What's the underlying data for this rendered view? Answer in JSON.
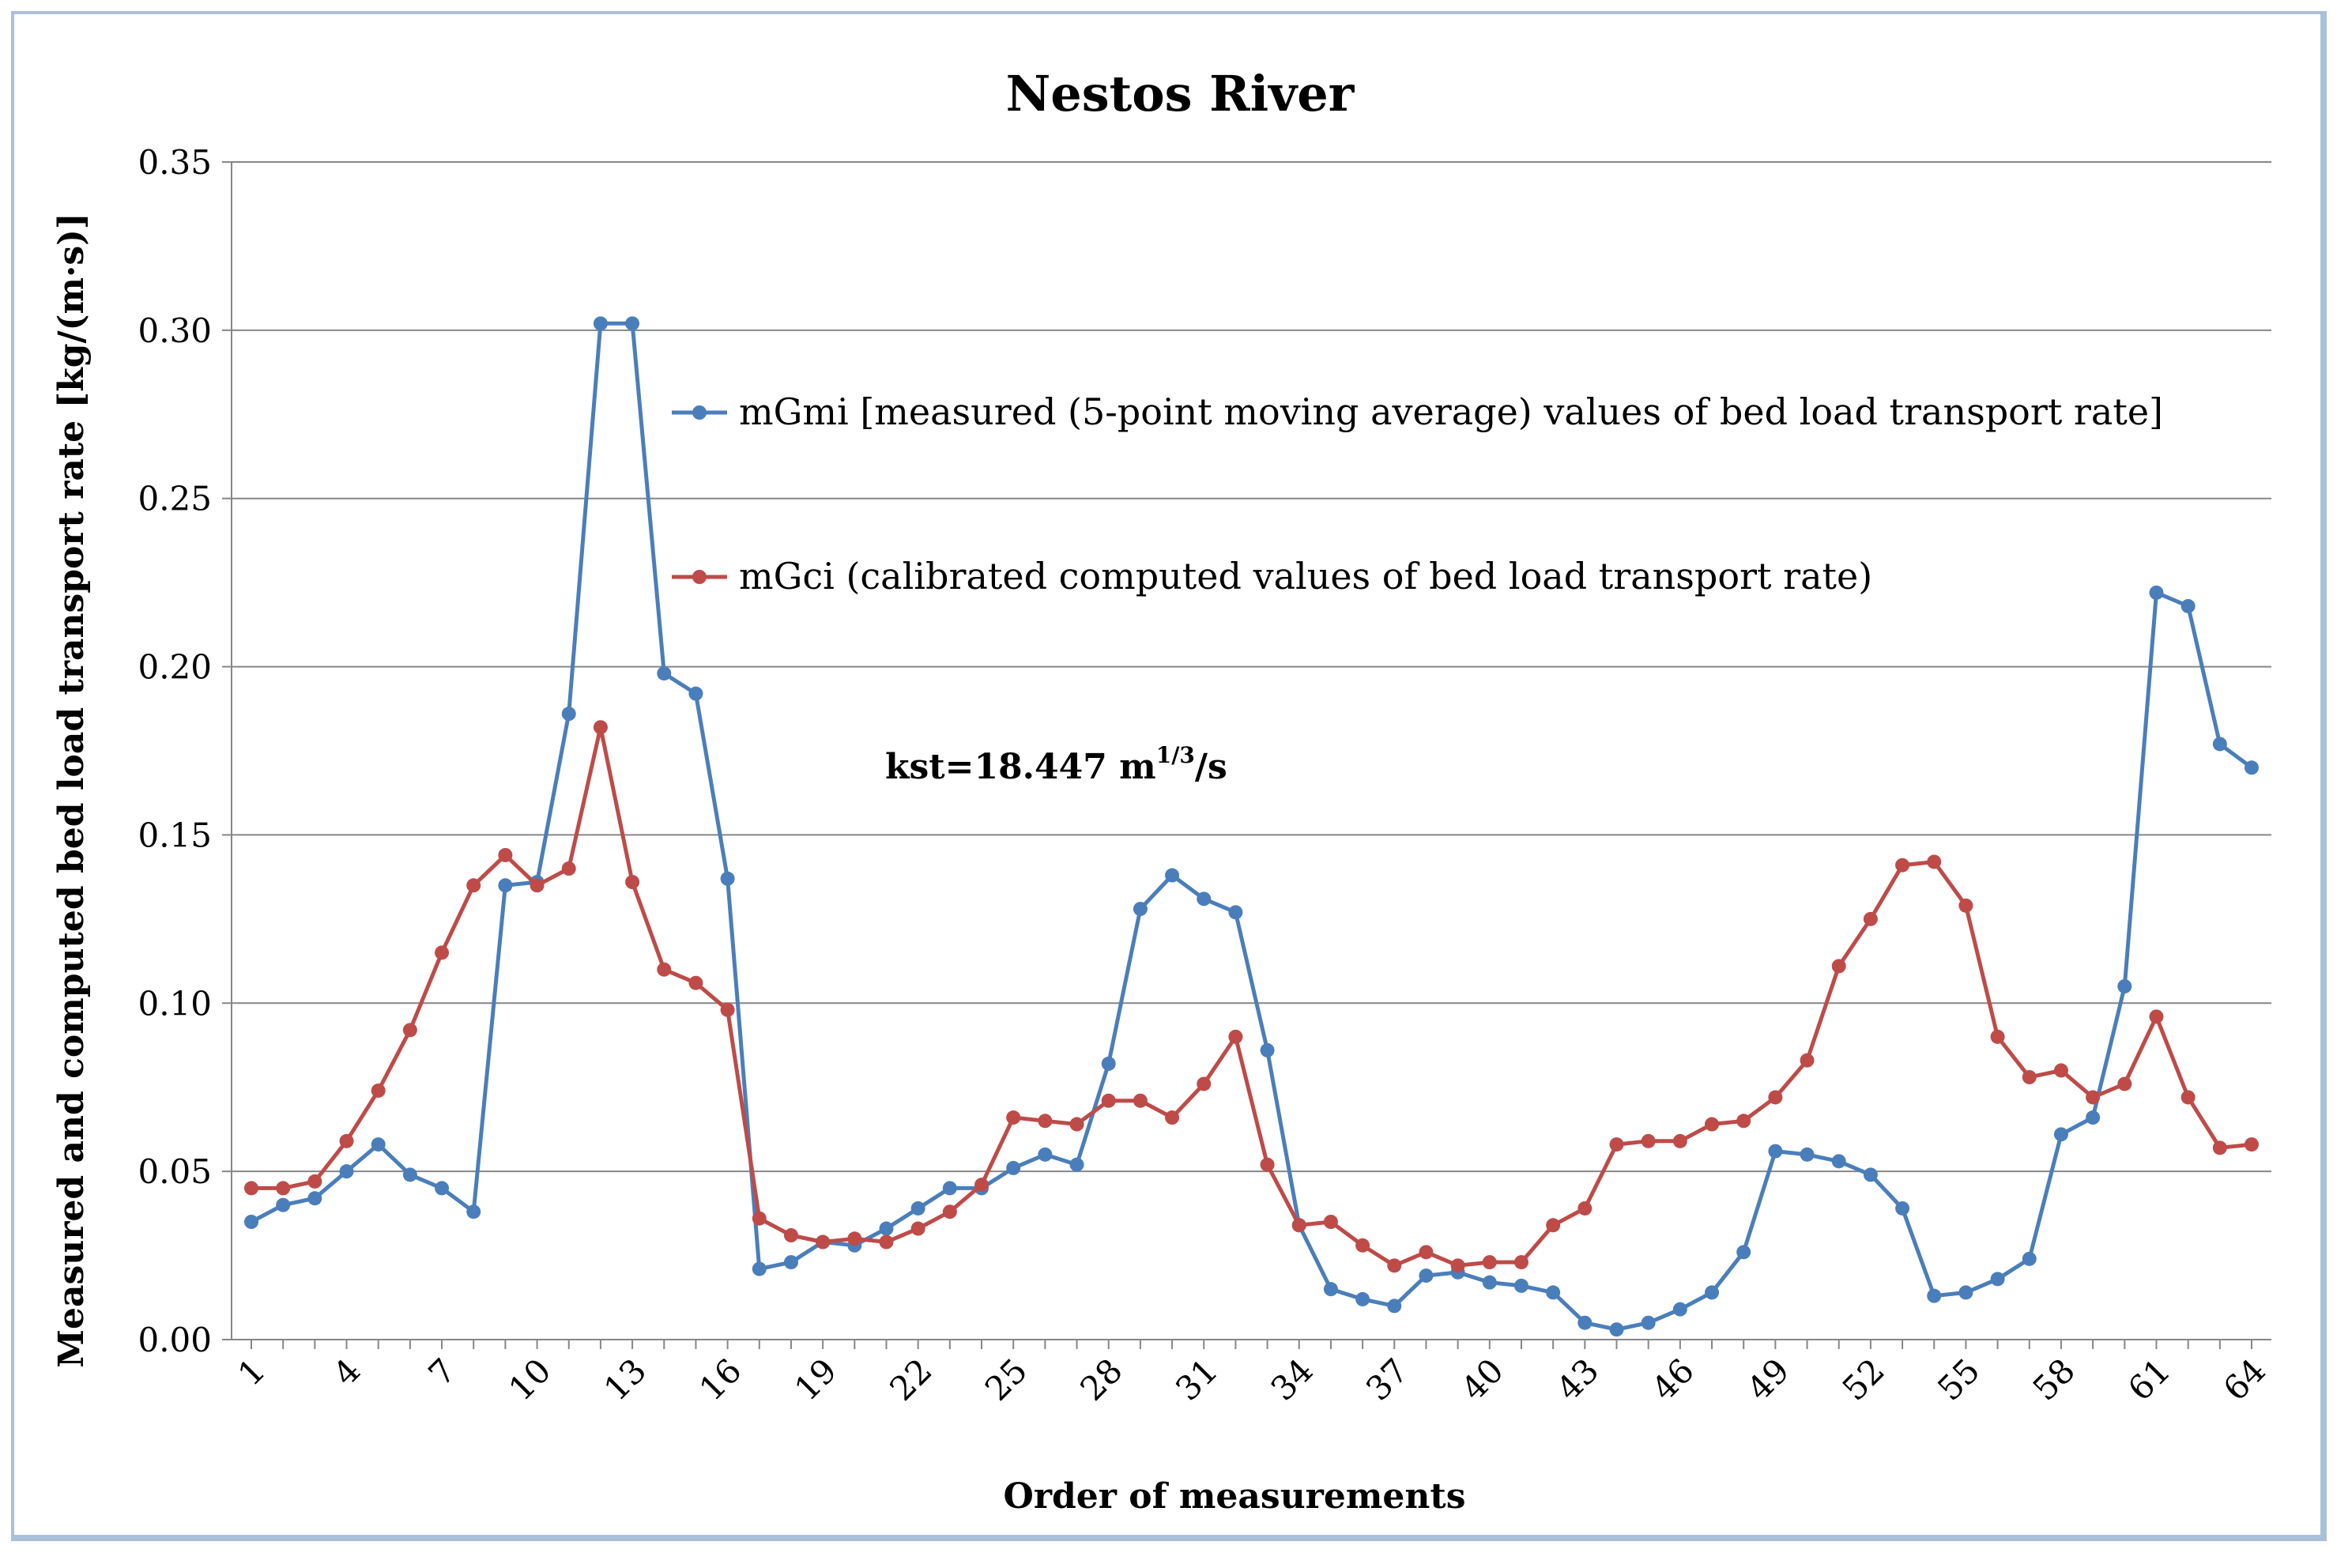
{
  "chart_data": {
    "type": "line",
    "title": "Nestos River",
    "xlabel": "Order of measurements",
    "ylabel": "Measured and computed bed load transport rate  [kg/(m·s)]",
    "ylim": [
      0,
      0.35
    ],
    "yticks": [
      "0.00",
      "0.05",
      "0.10",
      "0.15",
      "0.20",
      "0.25",
      "0.30",
      "0.35"
    ],
    "x": [
      1,
      2,
      3,
      4,
      5,
      6,
      7,
      8,
      9,
      10,
      11,
      12,
      13,
      14,
      15,
      16,
      17,
      18,
      19,
      20,
      21,
      22,
      23,
      24,
      25,
      26,
      27,
      28,
      29,
      30,
      31,
      32,
      33,
      34,
      35,
      36,
      37,
      38,
      39,
      40,
      41,
      42,
      43,
      44,
      45,
      46,
      47,
      48,
      49,
      50,
      51,
      52,
      53,
      54,
      55,
      56,
      57,
      58,
      59,
      60,
      61,
      62,
      63,
      64
    ],
    "xticks": [
      "1",
      "4",
      "7",
      "10",
      "13",
      "16",
      "19",
      "22",
      "25",
      "28",
      "31",
      "34",
      "37",
      "40",
      "43",
      "46",
      "49",
      "52",
      "55",
      "58",
      "61",
      "64"
    ],
    "grid": true,
    "annotation": {
      "prefix": "kst=18.447 m",
      "sup": "1/3",
      "suffix": "/s"
    },
    "series": [
      {
        "name": "mGmi [measured (5-point moving average) values of bed load transport rate]",
        "color": "#4a7ebb",
        "values": [
          0.035,
          0.04,
          0.042,
          0.05,
          0.058,
          0.049,
          0.045,
          0.038,
          0.135,
          0.136,
          0.186,
          0.302,
          0.302,
          0.198,
          0.192,
          0.137,
          0.021,
          0.023,
          0.029,
          0.028,
          0.033,
          0.039,
          0.045,
          0.045,
          0.051,
          0.055,
          0.052,
          0.082,
          0.128,
          0.138,
          0.131,
          0.127,
          0.086,
          0.034,
          0.015,
          0.012,
          0.01,
          0.019,
          0.02,
          0.017,
          0.016,
          0.014,
          0.005,
          0.003,
          0.005,
          0.009,
          0.014,
          0.026,
          0.056,
          0.055,
          0.053,
          0.049,
          0.039,
          0.013,
          0.014,
          0.018,
          0.024,
          0.061,
          0.066,
          0.105,
          0.222,
          0.218,
          0.177,
          0.17
        ]
      },
      {
        "name": "mGci (calibrated computed values of bed load transport rate)",
        "color": "#be4b48",
        "values": [
          0.045,
          0.045,
          0.047,
          0.059,
          0.074,
          0.092,
          0.115,
          0.135,
          0.144,
          0.135,
          0.14,
          0.182,
          0.136,
          0.11,
          0.106,
          0.098,
          0.036,
          0.031,
          0.029,
          0.03,
          0.029,
          0.033,
          0.038,
          0.046,
          0.066,
          0.065,
          0.064,
          0.071,
          0.071,
          0.066,
          0.076,
          0.09,
          0.052,
          0.034,
          0.035,
          0.028,
          0.022,
          0.026,
          0.022,
          0.023,
          0.023,
          0.034,
          0.039,
          0.058,
          0.059,
          0.059,
          0.064,
          0.065,
          0.072,
          0.083,
          0.111,
          0.125,
          0.141,
          0.142,
          0.129,
          0.09,
          0.078,
          0.08,
          0.072,
          0.076,
          0.096,
          0.072,
          0.057,
          0.058
        ]
      }
    ]
  }
}
